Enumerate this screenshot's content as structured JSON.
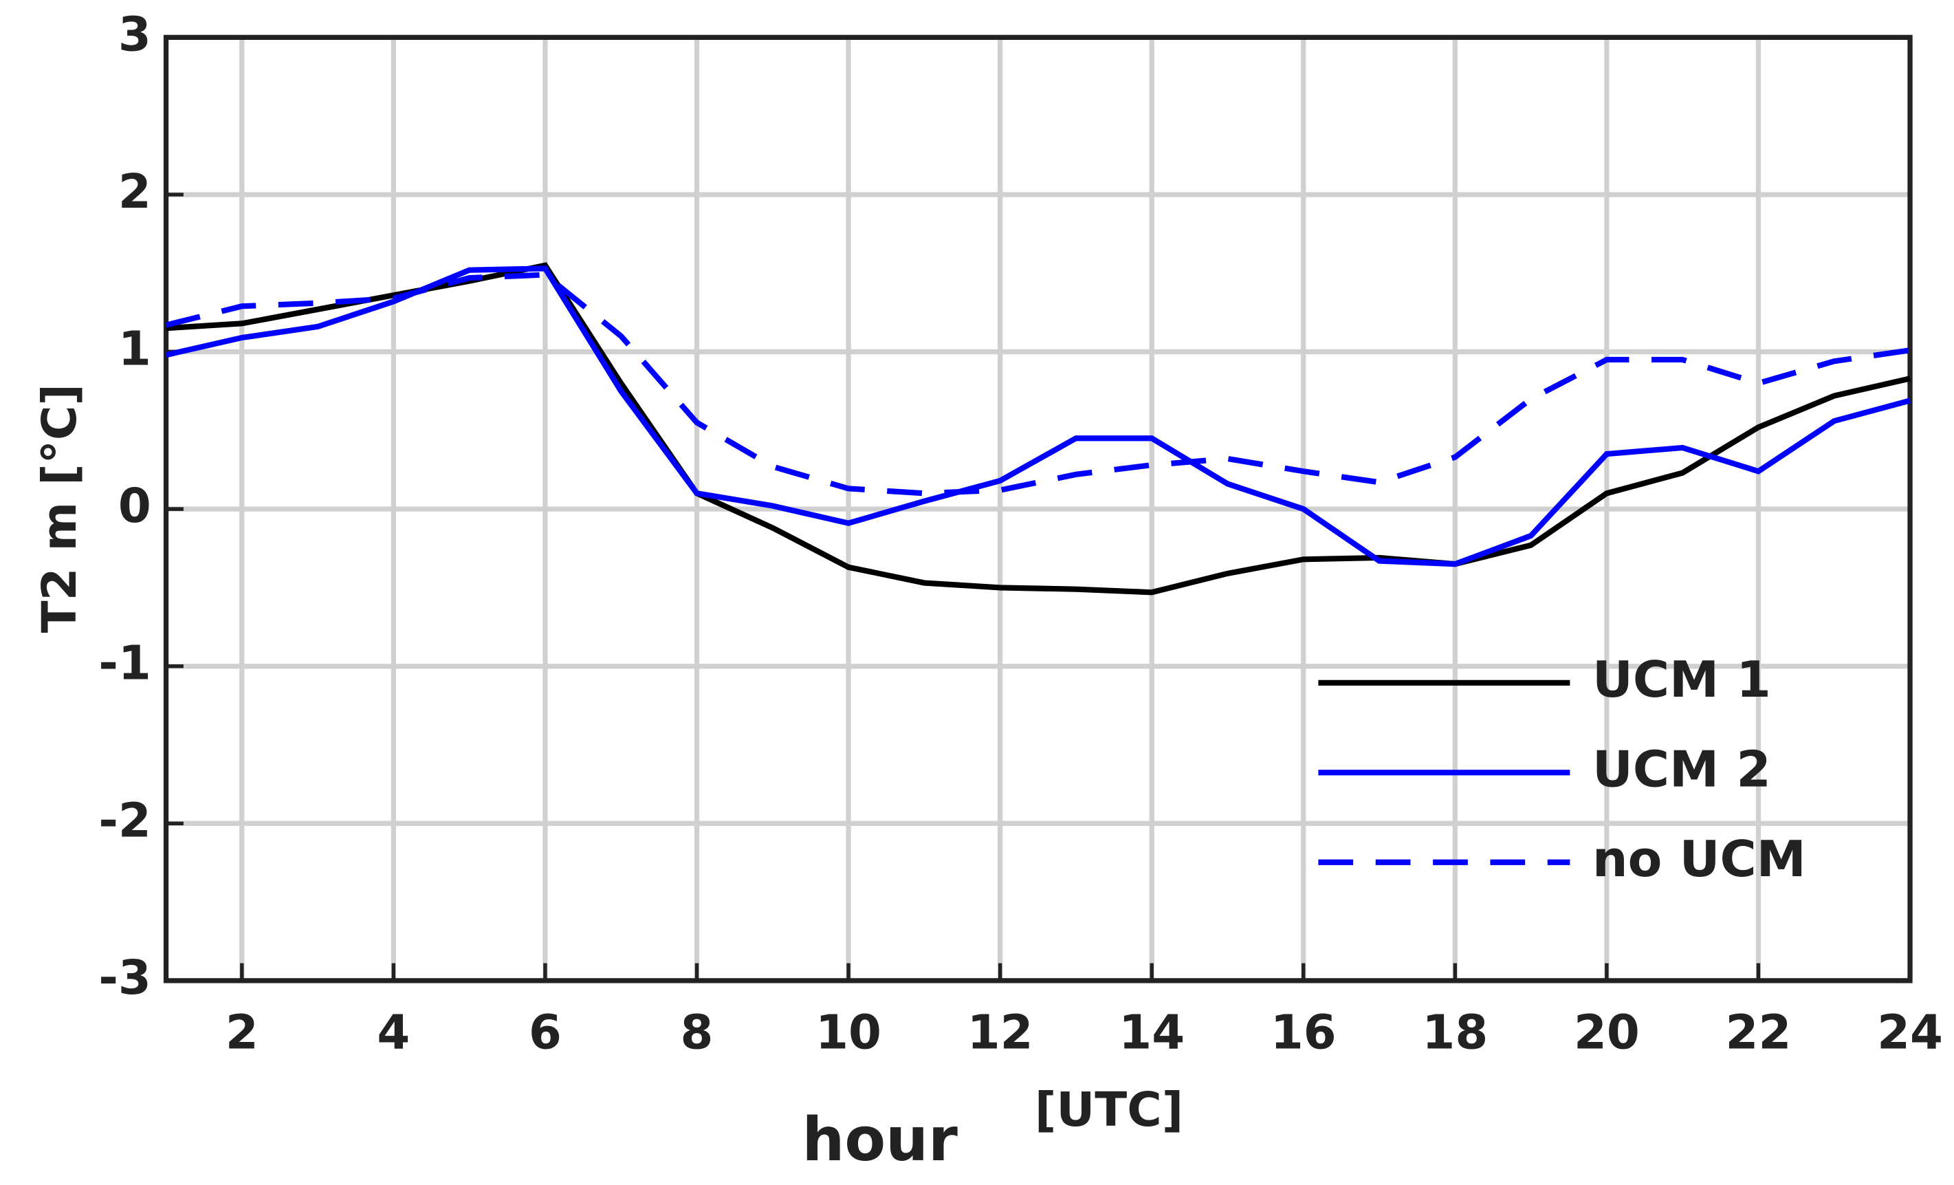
{
  "chart_data": {
    "type": "line",
    "y_label": "T2 m [°C]",
    "x_label": "hour",
    "x_unit_label": "[UTC]",
    "x": [
      1,
      2,
      3,
      4,
      5,
      6,
      7,
      8,
      9,
      10,
      11,
      12,
      13,
      14,
      15,
      16,
      17,
      18,
      19,
      20,
      21,
      22,
      23,
      24
    ],
    "series": [
      {
        "name": "UCM 1",
        "color": "#000000",
        "linestyle": "solid",
        "values": [
          1.15,
          1.18,
          1.27,
          1.36,
          1.45,
          1.55,
          0.8,
          0.1,
          -0.12,
          -0.37,
          -0.47,
          -0.5,
          -0.51,
          -0.53,
          -0.41,
          -0.32,
          -0.31,
          -0.35,
          -0.23,
          0.1,
          0.23,
          0.52,
          0.72,
          0.83
        ]
      },
      {
        "name": "UCM 2",
        "color": "#0000ff",
        "linestyle": "solid",
        "values": [
          0.98,
          1.09,
          1.16,
          1.32,
          1.52,
          1.53,
          0.75,
          0.1,
          0.02,
          -0.09,
          0.05,
          0.18,
          0.45,
          0.45,
          0.16,
          0.0,
          -0.33,
          -0.35,
          -0.17,
          0.35,
          0.39,
          0.24,
          0.56,
          0.69
        ]
      },
      {
        "name": "no UCM",
        "color": "#0000ff",
        "linestyle": "dashed",
        "values": [
          1.17,
          1.29,
          1.31,
          1.34,
          1.47,
          1.49,
          1.1,
          0.55,
          0.27,
          0.13,
          0.1,
          0.12,
          0.22,
          0.28,
          0.32,
          0.24,
          0.17,
          0.33,
          0.7,
          0.95,
          0.95,
          0.8,
          0.94,
          1.01
        ]
      }
    ],
    "xlim": [
      1,
      24
    ],
    "ylim": [
      -3,
      3
    ],
    "xticks": [
      2,
      4,
      6,
      8,
      10,
      12,
      14,
      16,
      18,
      20,
      22,
      24
    ],
    "yticks": [
      -3,
      -2,
      -1,
      0,
      1,
      2,
      3
    ],
    "grid": true,
    "legend": "lower right"
  }
}
